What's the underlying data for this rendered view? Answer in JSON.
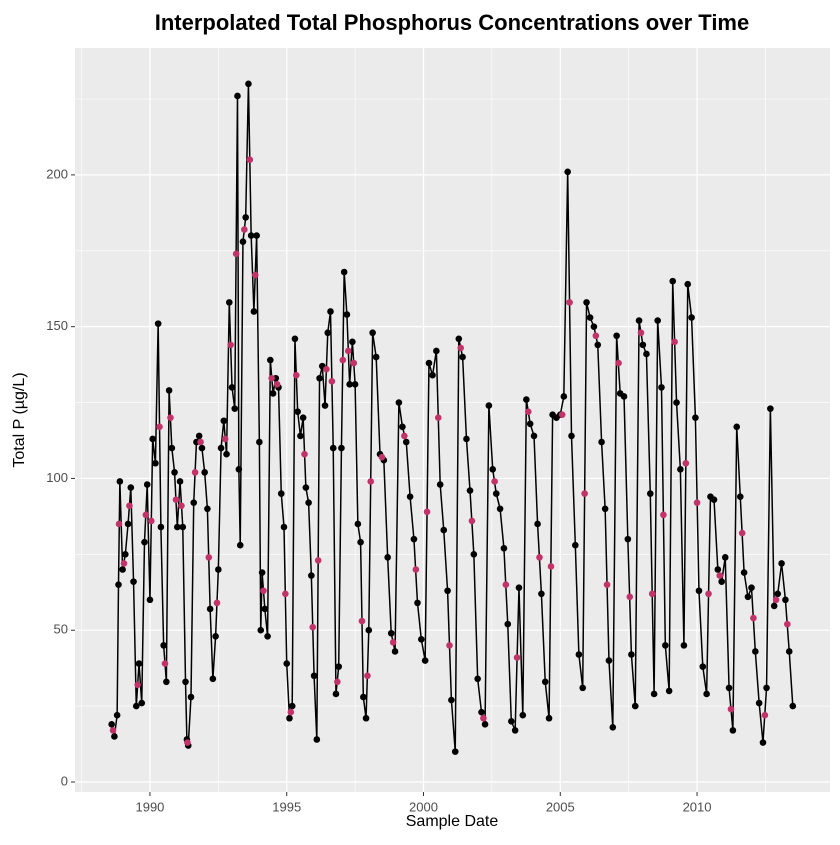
{
  "chart_data": {
    "type": "scatter",
    "title": "Interpolated Total Phosphorus Concentrations over Time",
    "x_label": "Sample Date",
    "y_label": "Total P (µg/L)",
    "xlim": [
      1987.26,
      2014.86
    ],
    "ylim": [
      -3.3,
      241.8
    ],
    "xticks": [
      1990,
      1995,
      2000,
      2005,
      2010
    ],
    "yticks": [
      0,
      50,
      100,
      150,
      200
    ],
    "grid": true,
    "series": [
      {
        "color": "#000000",
        "line": true,
        "x": [
          1988.6,
          1988.7,
          1988.8,
          1988.85,
          1988.9,
          1989.0,
          1989.1,
          1989.2,
          1989.3,
          1989.4,
          1989.5,
          1989.6,
          1989.7,
          1989.8,
          1989.9,
          1990.0,
          1990.1,
          1990.2,
          1990.3,
          1990.4,
          1990.5,
          1990.6,
          1990.7,
          1990.8,
          1990.9,
          1991.0,
          1991.1,
          1991.2,
          1991.3,
          1991.35,
          1991.4,
          1991.5,
          1991.6,
          1991.7,
          1991.8,
          1991.9,
          1992.0,
          1992.1,
          1992.2,
          1992.3,
          1992.4,
          1992.5,
          1992.6,
          1992.7,
          1992.8,
          1992.9,
          1993.0,
          1993.1,
          1993.2,
          1993.25,
          1993.3,
          1993.4,
          1993.5,
          1993.6,
          1993.7,
          1993.8,
          1993.9,
          1994.0,
          1994.05,
          1994.1,
          1994.2,
          1994.3,
          1994.4,
          1994.5,
          1994.6,
          1994.7,
          1994.8,
          1994.9,
          1995.0,
          1995.1,
          1995.2,
          1995.3,
          1995.4,
          1995.5,
          1995.6,
          1995.7,
          1995.8,
          1995.9,
          1996.0,
          1996.1,
          1996.2,
          1996.3,
          1996.4,
          1996.5,
          1996.6,
          1996.7,
          1996.8,
          1996.9,
          1997.0,
          1997.1,
          1997.2,
          1997.3,
          1997.4,
          1997.5,
          1997.6,
          1997.7,
          1997.8,
          1997.9,
          1998.0,
          1998.14,
          1998.27,
          1998.41,
          1998.55,
          1998.69,
          1998.82,
          1998.96,
          1999.1,
          1999.23,
          1999.37,
          1999.51,
          1999.65,
          1999.78,
          1999.92,
          2000.06,
          2000.2,
          2000.33,
          2000.47,
          2000.61,
          2000.74,
          2000.88,
          2001.02,
          2001.16,
          2001.29,
          2001.43,
          2001.57,
          2001.7,
          2001.84,
          2001.98,
          2002.12,
          2002.25,
          2002.39,
          2002.53,
          2002.66,
          2002.8,
          2002.94,
          2003.08,
          2003.21,
          2003.35,
          2003.49,
          2003.63,
          2003.76,
          2003.9,
          2004.04,
          2004.17,
          2004.31,
          2004.45,
          2004.59,
          2004.72,
          2004.86,
          2005.0,
          2005.13,
          2005.27,
          2005.41,
          2005.55,
          2005.68,
          2005.82,
          2005.96,
          2006.09,
          2006.23,
          2006.37,
          2006.51,
          2006.64,
          2006.78,
          2006.92,
          2007.06,
          2007.19,
          2007.33,
          2007.47,
          2007.6,
          2007.74,
          2007.88,
          2008.02,
          2008.15,
          2008.29,
          2008.43,
          2008.56,
          2008.7,
          2008.84,
          2008.98,
          2009.11,
          2009.25,
          2009.39,
          2009.52,
          2009.66,
          2009.8,
          2009.94,
          2010.07,
          2010.21,
          2010.35,
          2010.49,
          2010.62,
          2010.76,
          2010.9,
          2011.03,
          2011.17,
          2011.31,
          2011.45,
          2011.58,
          2011.72,
          2011.86,
          2011.99,
          2012.13,
          2012.27,
          2012.41,
          2012.54,
          2012.68,
          2012.82,
          2012.95,
          2013.09,
          2013.23,
          2013.37,
          2013.5
        ],
        "values": [
          19,
          15,
          22,
          65,
          99,
          70,
          75,
          85,
          97,
          66,
          25,
          39,
          26,
          79,
          98,
          60,
          113,
          105,
          151,
          84,
          45,
          33,
          129,
          110,
          102,
          84,
          99,
          84,
          33,
          14,
          12,
          28,
          92,
          112,
          114,
          110,
          102,
          90,
          57,
          34,
          48,
          70,
          110,
          119,
          108,
          158,
          130,
          123,
          226,
          103,
          78,
          178,
          186,
          230,
          180,
          155,
          180,
          112,
          50,
          69,
          57,
          48,
          139,
          128,
          133,
          130,
          95,
          84,
          39,
          21,
          25,
          146,
          122,
          114,
          120,
          97,
          92,
          68,
          35,
          14,
          133,
          137,
          124,
          148,
          155,
          110,
          29,
          38,
          110,
          168,
          154,
          131,
          145,
          131,
          85,
          79,
          28,
          21,
          50,
          148,
          140,
          108,
          106,
          74,
          49,
          43,
          125,
          117,
          112,
          94,
          80,
          59,
          47,
          40,
          138,
          134,
          142,
          98,
          83,
          63,
          27,
          10,
          146,
          140,
          113,
          96,
          75,
          34,
          23,
          19,
          124,
          103,
          95,
          90,
          77,
          52,
          20,
          17,
          64,
          22,
          126,
          118,
          114,
          85,
          62,
          33,
          21,
          121,
          120,
          121,
          127,
          201,
          114,
          78,
          42,
          31,
          158,
          153,
          150,
          144,
          112,
          90,
          40,
          18,
          147,
          128,
          127,
          80,
          42,
          25,
          152,
          144,
          141,
          95,
          29,
          152,
          130,
          45,
          30,
          165,
          125,
          103,
          45,
          164,
          153,
          120,
          63,
          38,
          29,
          94,
          93,
          70,
          66,
          74,
          31,
          17,
          117,
          94,
          69,
          61,
          64,
          43,
          26,
          13,
          31,
          123,
          58,
          62,
          72,
          60,
          43,
          25
        ]
      },
      {
        "color": "#c2336a",
        "line": false,
        "x": [
          1988.65,
          1988.87,
          1989.05,
          1989.25,
          1989.55,
          1989.85,
          1990.05,
          1990.35,
          1990.55,
          1990.75,
          1990.95,
          1991.15,
          1991.37,
          1991.65,
          1991.85,
          1992.15,
          1992.45,
          1992.75,
          1992.95,
          1993.15,
          1993.45,
          1993.65,
          1993.85,
          1994.15,
          1994.45,
          1994.65,
          1994.95,
          1995.15,
          1995.35,
          1995.65,
          1995.95,
          1996.15,
          1996.45,
          1996.65,
          1996.85,
          1997.05,
          1997.25,
          1997.45,
          1997.75,
          1997.95,
          1998.07,
          1998.48,
          1998.89,
          1999.3,
          1999.72,
          2000.13,
          2000.54,
          2000.95,
          2001.36,
          2001.77,
          2002.19,
          2002.6,
          2003.01,
          2003.42,
          2003.83,
          2004.24,
          2004.66,
          2005.07,
          2005.34,
          2005.89,
          2006.3,
          2006.71,
          2007.13,
          2007.54,
          2007.95,
          2008.36,
          2008.77,
          2009.18,
          2009.59,
          2010.0,
          2010.42,
          2010.83,
          2011.24,
          2011.65,
          2012.06,
          2012.48,
          2012.89,
          2013.3
        ],
        "values": [
          17,
          85,
          72,
          91,
          32,
          88,
          86,
          117,
          39,
          120,
          93,
          91,
          13,
          102,
          112,
          74,
          59,
          113,
          144,
          174,
          182,
          205,
          167,
          63,
          133,
          131,
          62,
          23,
          134,
          108,
          51,
          73,
          136,
          132,
          33,
          139,
          142,
          138,
          53,
          35,
          99,
          107,
          46,
          114,
          70,
          89,
          120,
          45,
          143,
          86,
          21,
          99,
          65,
          41,
          122,
          74,
          71,
          121,
          158,
          95,
          147,
          65,
          138,
          61,
          148,
          62,
          88,
          145,
          105,
          92,
          62,
          68,
          24,
          82,
          54,
          22,
          60,
          52
        ]
      }
    ]
  }
}
